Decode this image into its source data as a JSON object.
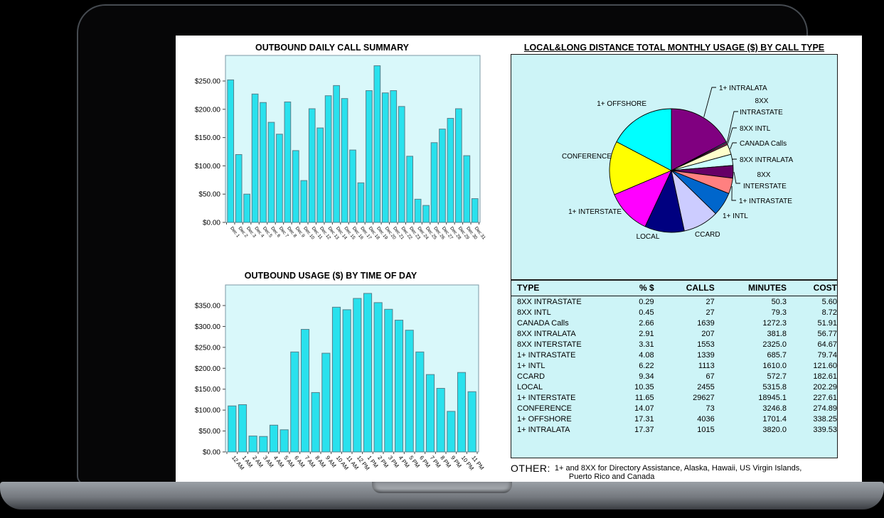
{
  "other_note": {
    "label": "OTHER:",
    "line1": "1+ and 8XX for Directory Assistance, Alaska, Hawaii, US Virgin Islands,",
    "line2": "Puerto Rico and Canada"
  },
  "colors": {
    "plot_bg": "#D9F8FA",
    "panel_bg": "#CDF4F7",
    "bar_fill": "#29E1ED",
    "bar_stroke": "#56808C",
    "plot_border": "#7C98A6",
    "text": "#000000"
  },
  "chart_data": [
    {
      "type": "bar",
      "title": "OUTBOUND DAILY CALL SUMMARY",
      "categories": [
        "Dec 1",
        "Dec 2",
        "Dec 3",
        "Dec 4",
        "Dec 5",
        "Dec 6",
        "Dec 7",
        "Dec 8",
        "Dec 9",
        "Dec 10",
        "Dec 11",
        "Dec 12",
        "Dec 13",
        "Dec 14",
        "Dec 15",
        "Dec 16",
        "Dec 17",
        "Dec 18",
        "Dec 19",
        "Dec 20",
        "Dec 21",
        "Dec 22",
        "Dec 23",
        "Dec 24",
        "Dec 25",
        "Dec 26",
        "Dec 27",
        "Dec 28",
        "Dec 29",
        "Dec 30",
        "Dec 31"
      ],
      "values": [
        252,
        120,
        50,
        227,
        212,
        177,
        156,
        213,
        127,
        74,
        201,
        167,
        224,
        242,
        219,
        128,
        70,
        233,
        277,
        229,
        233,
        205,
        117,
        41,
        30,
        141,
        165,
        184,
        201,
        118,
        42
      ],
      "ylim": [
        0,
        295
      ],
      "ytick_values": [
        0,
        50,
        100,
        150,
        200,
        250
      ],
      "ytick_labels": [
        "$0.00",
        "$50.00",
        "$100.00",
        "$150.00",
        "$200.00",
        "$250.00"
      ],
      "xlabel": "",
      "ylabel": "",
      "grid": false,
      "legend": "none"
    },
    {
      "type": "bar",
      "title": "OUTBOUND USAGE ($) BY TIME OF DAY",
      "categories": [
        "12 AM",
        "1 AM",
        "2 AM",
        "3 AM",
        "4 AM",
        "5 AM",
        "6 AM",
        "7 AM",
        "8 AM",
        "9 AM",
        "10 AM",
        "11 AM",
        "12 PM",
        "1 PM",
        "2 PM",
        "3 PM",
        "4 PM",
        "5 PM",
        "6 PM",
        "7 PM",
        "8 PM",
        "9 PM",
        "10 PM",
        "11 PM"
      ],
      "values": [
        110,
        113,
        38,
        37,
        64,
        53,
        239,
        293,
        142,
        236,
        346,
        340,
        367,
        379,
        357,
        341,
        315,
        291,
        239,
        185,
        152,
        97,
        190,
        144
      ],
      "ylim": [
        0,
        400
      ],
      "ytick_values": [
        0,
        50,
        100,
        150,
        200,
        250,
        300,
        350
      ],
      "ytick_labels": [
        "$0.00",
        "$50.00",
        "$100.00",
        "$150.00",
        "$200.00",
        "$250.00",
        "$300.00",
        "$350.00"
      ],
      "xlabel": "",
      "ylabel": "",
      "grid": false,
      "legend": "none"
    },
    {
      "type": "pie",
      "title": "LOCAL&LONG DISTANCE TOTAL MONTHLY USAGE ($) BY CALL TYPE",
      "start_angle_deg": 0,
      "direction": "clockwise",
      "slices": [
        {
          "label": "1+ INTRALATA",
          "pct": 17.37,
          "color": "#800080",
          "leader": true,
          "lines": [
            {
              "t": "1+ INTRALATA",
              "x": 292,
              "y": 50,
              "a": "start"
            }
          ],
          "leader_to": [
            288,
            46
          ]
        },
        {
          "label": "8XX INTRASTATE",
          "pct": 0.29,
          "color": "#9999FF",
          "leader": true,
          "lines": [
            {
              "t": "8XX",
              "x": 352,
              "y": 68,
              "a": "middle"
            },
            {
              "t": "INTRASTATE",
              "x": 321,
              "y": 84,
              "a": "start"
            }
          ],
          "leader_to": [
            319,
            80
          ]
        },
        {
          "label": "8XX INTL",
          "pct": 0.45,
          "color": "#993366",
          "leader": true,
          "lines": [
            {
              "t": "8XX INTL",
              "x": 321,
              "y": 107,
              "a": "start"
            }
          ],
          "leader_to": [
            317,
            103
          ]
        },
        {
          "label": "CANADA Calls",
          "pct": 2.66,
          "color": "#FFFFCC",
          "leader": true,
          "lines": [
            {
              "t": "CANADA Calls",
              "x": 321,
              "y": 128,
              "a": "start"
            }
          ],
          "leader_to": [
            317,
            124
          ]
        },
        {
          "label": "8XX INTRALATA",
          "pct": 2.91,
          "color": "#CCFFFF",
          "leader": true,
          "lines": [
            {
              "t": "8XX INTRALATA",
              "x": 321,
              "y": 151,
              "a": "start"
            }
          ],
          "leader_to": [
            317,
            147
          ]
        },
        {
          "label": "8XX INTERSTATE",
          "pct": 3.31,
          "color": "#660066",
          "leader": true,
          "lines": [
            {
              "t": "8XX",
              "x": 355,
              "y": 172,
              "a": "middle"
            },
            {
              "t": "INTERSTATE",
              "x": 326,
              "y": 188,
              "a": "start"
            }
          ],
          "leader_to": [
            322,
            181
          ]
        },
        {
          "label": "1+ INTRASTATE",
          "pct": 4.08,
          "color": "#FF8080",
          "leader": true,
          "lines": [
            {
              "t": "1+ INTRASTATE",
              "x": 320,
              "y": 209,
              "a": "start"
            }
          ],
          "leader_to": [
            316,
            205
          ]
        },
        {
          "label": "1+ INTL",
          "pct": 6.22,
          "color": "#0066CC",
          "leader": false,
          "lines": [
            {
              "t": "1+ INTL",
              "x": 297,
              "y": 230,
              "a": "start"
            }
          ]
        },
        {
          "label": "CCARD",
          "pct": 9.34,
          "color": "#CCCCFF",
          "leader": false,
          "lines": [
            {
              "t": "CCARD",
              "x": 258,
              "y": 256,
              "a": "start"
            }
          ]
        },
        {
          "label": "LOCAL",
          "pct": 10.35,
          "color": "#000080",
          "leader": false,
          "lines": [
            {
              "t": "LOCAL",
              "x": 192,
              "y": 259,
              "a": "middle"
            }
          ]
        },
        {
          "label": "1+ INTERSTATE",
          "pct": 11.65,
          "color": "#FF00FF",
          "leader": false,
          "lines": [
            {
              "t": "1+ INTERSTATE",
              "x": 155,
              "y": 224,
              "a": "end"
            }
          ]
        },
        {
          "label": "CONFERENCE",
          "pct": 14.07,
          "color": "#FFFF00",
          "leader": false,
          "lines": [
            {
              "t": "CONFERENCE",
              "x": 141,
              "y": 146,
              "a": "end"
            }
          ]
        },
        {
          "label": "1+ OFFSHORE",
          "pct": 17.31,
          "color": "#00FFFF",
          "leader": false,
          "lines": [
            {
              "t": "1+ OFFSHORE",
              "x": 190,
              "y": 72,
              "a": "end"
            }
          ]
        }
      ]
    },
    {
      "type": "table",
      "headers": [
        "TYPE",
        "% $",
        "CALLS",
        "MINUTES",
        "COST"
      ],
      "rows": [
        [
          "8XX INTRASTATE",
          "0.29",
          "27",
          "50.3",
          "5.60"
        ],
        [
          "8XX INTL",
          "0.45",
          "27",
          "79.3",
          "8.72"
        ],
        [
          "CANADA Calls",
          "2.66",
          "1639",
          "1272.3",
          "51.91"
        ],
        [
          "8XX INTRALATA",
          "2.91",
          "207",
          "381.8",
          "56.77"
        ],
        [
          "8XX INTERSTATE",
          "3.31",
          "1553",
          "2325.0",
          "64.67"
        ],
        [
          "1+ INTRASTATE",
          "4.08",
          "1339",
          "685.7",
          "79.74"
        ],
        [
          "1+ INTL",
          "6.22",
          "1113",
          "1610.0",
          "121.60"
        ],
        [
          "CCARD",
          "9.34",
          "67",
          "572.7",
          "182.61"
        ],
        [
          "LOCAL",
          "10.35",
          "2455",
          "5315.8",
          "202.29"
        ],
        [
          "1+ INTERSTATE",
          "11.65",
          "29627",
          "18945.1",
          "227.61"
        ],
        [
          "CONFERENCE",
          "14.07",
          "73",
          "3246.8",
          "274.89"
        ],
        [
          "1+ OFFSHORE",
          "17.31",
          "4036",
          "1701.4",
          "338.25"
        ],
        [
          "1+ INTRALATA",
          "17.37",
          "1015",
          "3820.0",
          "339.53"
        ]
      ]
    }
  ]
}
